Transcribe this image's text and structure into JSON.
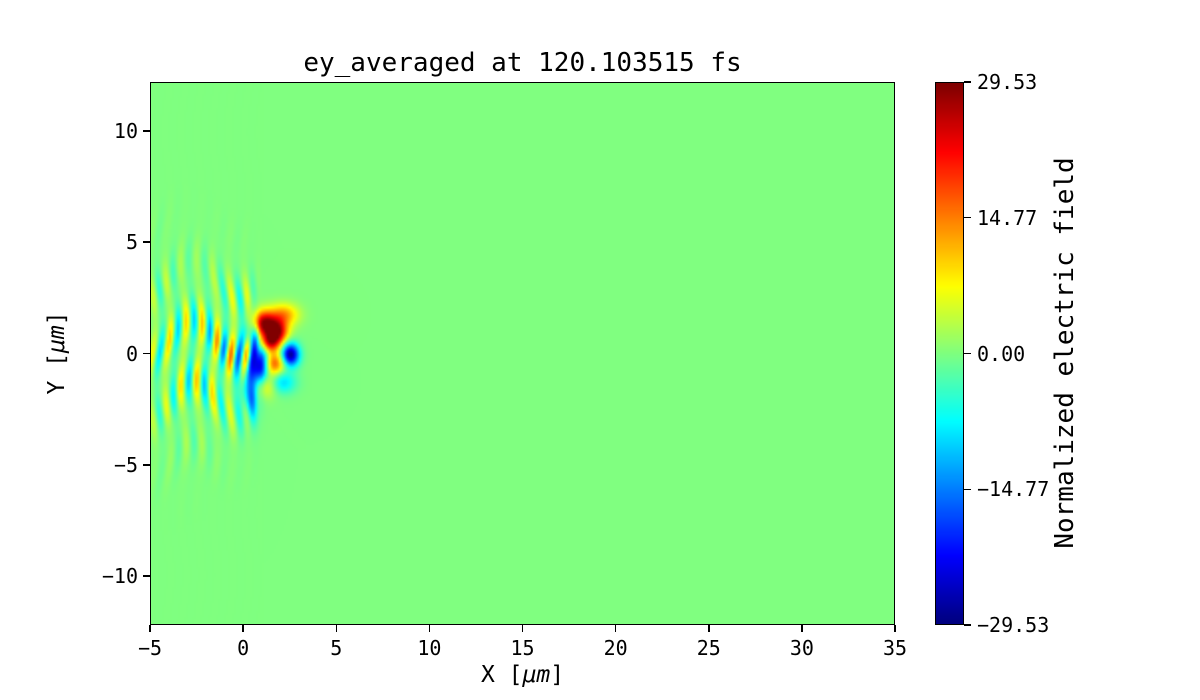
{
  "figure": {
    "background": "#ffffff",
    "spine_color": "#000000"
  },
  "chart_data": {
    "type": "heatmap",
    "title": "ey_averaged at 120.103515 fs",
    "time_fs": 120.103515,
    "quantity": "ey_averaged",
    "xlabel": "X [μm]",
    "ylabel": "Y [μm]",
    "xlabel_parts": {
      "pre": "X [",
      "unit": "μm",
      "post": "]"
    },
    "ylabel_parts": {
      "pre": "Y [",
      "unit": "μm",
      "post": "]"
    },
    "xlim": [
      -5,
      35
    ],
    "ylim": [
      -12.2,
      12.2
    ],
    "xticks": [
      -5,
      0,
      5,
      10,
      15,
      20,
      25,
      30,
      35
    ],
    "xtick_labels": [
      "−5",
      "0",
      "5",
      "10",
      "15",
      "20",
      "25",
      "30",
      "35"
    ],
    "yticks": [
      -10,
      -5,
      0,
      5,
      10
    ],
    "ytick_labels": [
      "−10",
      "−5",
      "0",
      "5",
      "10"
    ],
    "grid": false,
    "colormap": "jet",
    "colorbar": {
      "label": "Normalized electric field",
      "vmin": -29.53,
      "vmax": 29.53,
      "ticks": [
        29.53,
        14.77,
        0.0,
        -14.77,
        -29.53
      ],
      "tick_labels": [
        "29.53",
        "14.77",
        "0.00",
        "−14.77",
        "−29.53"
      ],
      "position": "right"
    },
    "field": {
      "background_value": 0,
      "description": "Laser pulse with vertical phase-front striations from x≈-5 to x≈1 µm converging toward a speckled focus near x≈1.5 µm, y≈0 µm; field ≈ 0 everywhere else",
      "stripes": {
        "x_start": -5.6,
        "x_end": 1.0,
        "wavelength": 0.85,
        "amplitude": 11,
        "y_sigma_start": 2.8,
        "y_sigma_end": 1.8
      },
      "blobs": [
        {
          "x": 1.05,
          "y": 1.35,
          "sx": 0.45,
          "sy": 0.4,
          "a": 27
        },
        {
          "x": 1.8,
          "y": 1.0,
          "sx": 0.4,
          "sy": 0.38,
          "a": 25
        },
        {
          "x": 1.4,
          "y": 0.5,
          "sx": 0.38,
          "sy": 0.32,
          "a": 21
        },
        {
          "x": 2.15,
          "y": 1.75,
          "sx": 0.55,
          "sy": 0.35,
          "a": 13
        },
        {
          "x": 2.5,
          "y": -0.05,
          "sx": 0.33,
          "sy": 0.36,
          "a": -29
        },
        {
          "x": 1.65,
          "y": -0.45,
          "sx": 0.4,
          "sy": 0.35,
          "a": 17
        },
        {
          "x": 0.9,
          "y": -0.55,
          "sx": 0.3,
          "sy": 0.65,
          "a": -25
        },
        {
          "x": 0.35,
          "y": -1.55,
          "sx": 0.32,
          "sy": 0.95,
          "a": -15
        },
        {
          "x": 0.4,
          "y": 0.9,
          "sx": 0.28,
          "sy": 0.55,
          "a": -13
        },
        {
          "x": 1.1,
          "y": -1.4,
          "sx": 0.45,
          "sy": 0.4,
          "a": 12
        },
        {
          "x": 2.05,
          "y": -1.3,
          "sx": 0.5,
          "sy": 0.35,
          "a": -10
        }
      ]
    }
  }
}
